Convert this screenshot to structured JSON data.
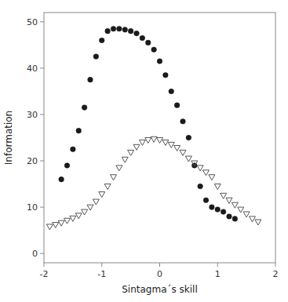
{
  "chart_data": {
    "type": "scatter",
    "xlabel": "Sintagma´s skill",
    "ylabel": "Information",
    "xlim": [
      -2.0,
      2.0
    ],
    "ylim": [
      -2.0,
      52.0
    ],
    "xticks": [
      -2.0,
      -1.0,
      0.0,
      1.0,
      2.0
    ],
    "yticks": [
      0.0,
      10.0,
      20.0,
      30.0,
      40.0,
      50.0
    ],
    "grid": false,
    "series": [
      {
        "color": "#1a1a1a",
        "marker": "circle",
        "x": [
          -1.7,
          -1.6,
          -1.5,
          -1.4,
          -1.3,
          -1.2,
          -1.1,
          -1.0,
          -0.9,
          -0.8,
          -0.7,
          -0.6,
          -0.5,
          -0.4,
          -0.3,
          -0.2,
          -0.1,
          0.0,
          0.1,
          0.2,
          0.3,
          0.4,
          0.5,
          0.6,
          0.7,
          0.8,
          0.9,
          1.0,
          1.1,
          1.2,
          1.3
        ],
        "values": [
          16.0,
          19.0,
          22.5,
          26.5,
          31.5,
          37.5,
          42.5,
          46.0,
          48.0,
          48.5,
          48.5,
          48.3,
          48.0,
          47.5,
          46.5,
          45.5,
          44.0,
          41.5,
          38.5,
          35.0,
          32.0,
          28.5,
          25.0,
          19.0,
          14.5,
          11.5,
          10.0,
          9.5,
          9.0,
          8.0,
          7.5
        ]
      },
      {
        "color": "#555555",
        "marker": "open-triangle-down",
        "x": [
          -1.9,
          -1.8,
          -1.7,
          -1.6,
          -1.5,
          -1.4,
          -1.3,
          -1.2,
          -1.1,
          -1.0,
          -0.9,
          -0.8,
          -0.7,
          -0.6,
          -0.5,
          -0.4,
          -0.3,
          -0.2,
          -0.1,
          0.0,
          0.1,
          0.2,
          0.3,
          0.4,
          0.5,
          0.6,
          0.7,
          0.8,
          0.9,
          1.0,
          1.1,
          1.2,
          1.3,
          1.4,
          1.5,
          1.6,
          1.7
        ],
        "values": [
          5.8,
          6.2,
          6.6,
          7.1,
          7.6,
          8.2,
          9.0,
          10.0,
          11.2,
          12.8,
          14.5,
          16.5,
          18.5,
          20.3,
          21.8,
          23.0,
          24.0,
          24.5,
          24.7,
          24.5,
          24.0,
          23.5,
          22.8,
          21.8,
          20.5,
          19.5,
          18.5,
          17.5,
          16.5,
          14.5,
          12.5,
          11.5,
          10.5,
          9.5,
          8.5,
          7.5,
          6.8
        ]
      }
    ]
  }
}
